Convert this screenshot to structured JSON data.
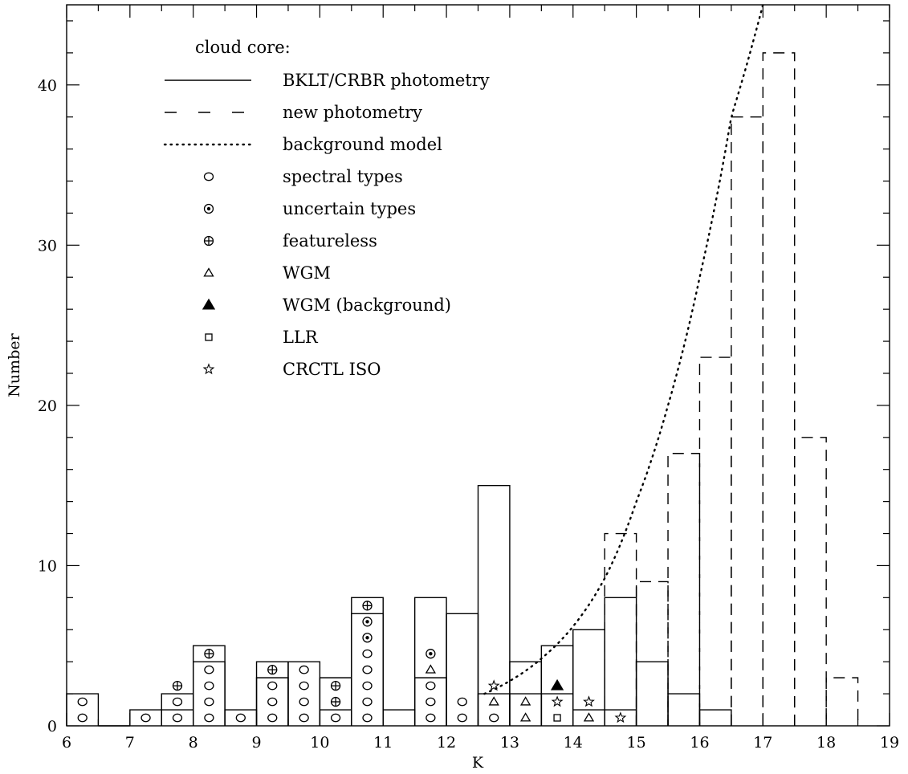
{
  "chart_data": {
    "type": "histogram",
    "title": "",
    "xlabel": "K",
    "ylabel": "Number",
    "xlim": [
      6,
      19
    ],
    "ylim": [
      0,
      45
    ],
    "x_ticks": [
      "6",
      "7",
      "8",
      "9",
      "10",
      "11",
      "12",
      "13",
      "14",
      "15",
      "16",
      "17",
      "18",
      "19"
    ],
    "y_ticks": [
      "0",
      "10",
      "20",
      "30",
      "40"
    ],
    "legend": {
      "title": "cloud core:",
      "placement": "top-left",
      "entries": [
        {
          "label": "BKLT/CRBR photometry",
          "style": "solid"
        },
        {
          "label": "new photometry",
          "style": "dashed"
        },
        {
          "label": "background model",
          "style": "dotted"
        },
        {
          "label": "spectral types",
          "marker": "circle"
        },
        {
          "label": "uncertain types",
          "marker": "dotted-circle"
        },
        {
          "label": "featureless",
          "marker": "circle-plus"
        },
        {
          "label": "WGM",
          "marker": "triangle-open"
        },
        {
          "label": "WGM (background)",
          "marker": "triangle-filled"
        },
        {
          "label": "LLR",
          "marker": "square-open"
        },
        {
          "label": "CRCTL ISO",
          "marker": "star-open"
        }
      ]
    },
    "series": [
      {
        "name": "BKLT/CRBR photometry",
        "style": "solid",
        "bins": [
          [
            6,
            6.5,
            2
          ],
          [
            6.5,
            7,
            0
          ],
          [
            7,
            7.5,
            1
          ],
          [
            7.5,
            8,
            1
          ],
          [
            8,
            8.5,
            5
          ],
          [
            8.5,
            9,
            1
          ],
          [
            9,
            9.5,
            4
          ],
          [
            9.5,
            10,
            4
          ],
          [
            10,
            10.5,
            3
          ],
          [
            10.5,
            11,
            8
          ],
          [
            11,
            11.5,
            1
          ],
          [
            11.5,
            12,
            8
          ],
          [
            12,
            12.5,
            7
          ],
          [
            12.5,
            13,
            15
          ],
          [
            13,
            13.5,
            4
          ],
          [
            13.5,
            14,
            5
          ],
          [
            14,
            14.5,
            6
          ],
          [
            14.5,
            15,
            8
          ],
          [
            15,
            15.5,
            4
          ],
          [
            15.5,
            16,
            2
          ],
          [
            16,
            16.5,
            1
          ]
        ]
      },
      {
        "name": "new photometry",
        "style": "dashed",
        "bins": [
          [
            14.5,
            15,
            12
          ],
          [
            15,
            15.5,
            9
          ],
          [
            15.5,
            16,
            17
          ],
          [
            16,
            16.5,
            23
          ],
          [
            16.5,
            17,
            38
          ],
          [
            17,
            17.5,
            42
          ],
          [
            17.5,
            18,
            18
          ],
          [
            18,
            18.5,
            3
          ]
        ]
      },
      {
        "name": "background model",
        "style": "dotted",
        "x": [
          12.6,
          13,
          13.5,
          14,
          14.5,
          15,
          15.5,
          16,
          16.5,
          17
        ],
        "y": [
          2,
          2.8,
          4.2,
          6.2,
          9.2,
          14,
          20,
          28,
          38,
          45
        ]
      },
      {
        "name": "spectral types",
        "style": "outline",
        "bins": [
          [
            7.5,
            8,
            2
          ],
          [
            8,
            8.5,
            4
          ],
          [
            9,
            9.5,
            3
          ],
          [
            10,
            10.5,
            1
          ],
          [
            10.5,
            11,
            7
          ],
          [
            11.5,
            12,
            3
          ],
          [
            12.5,
            13,
            2
          ],
          [
            13,
            13.5,
            2
          ],
          [
            13.5,
            14,
            2
          ],
          [
            14,
            14.5,
            1
          ],
          [
            14.5,
            15,
            1
          ]
        ]
      }
    ],
    "markers": [
      {
        "k": 6.25,
        "n": 1,
        "type": "circle"
      },
      {
        "k": 6.25,
        "n": 2,
        "type": "circle"
      },
      {
        "k": 7.25,
        "n": 1,
        "type": "circle"
      },
      {
        "k": 7.75,
        "n": 1,
        "type": "circle"
      },
      {
        "k": 7.75,
        "n": 2,
        "type": "circle"
      },
      {
        "k": 7.75,
        "n": 3,
        "type": "circle-plus"
      },
      {
        "k": 8.25,
        "n": 1,
        "type": "circle"
      },
      {
        "k": 8.25,
        "n": 2,
        "type": "circle"
      },
      {
        "k": 8.25,
        "n": 3,
        "type": "circle"
      },
      {
        "k": 8.25,
        "n": 4,
        "type": "circle"
      },
      {
        "k": 8.25,
        "n": 5,
        "type": "circle-plus"
      },
      {
        "k": 8.75,
        "n": 1,
        "type": "circle"
      },
      {
        "k": 9.25,
        "n": 1,
        "type": "circle"
      },
      {
        "k": 9.25,
        "n": 2,
        "type": "circle"
      },
      {
        "k": 9.25,
        "n": 3,
        "type": "circle"
      },
      {
        "k": 9.25,
        "n": 4,
        "type": "circle-plus"
      },
      {
        "k": 9.75,
        "n": 1,
        "type": "circle"
      },
      {
        "k": 9.75,
        "n": 2,
        "type": "circle"
      },
      {
        "k": 9.75,
        "n": 3,
        "type": "circle"
      },
      {
        "k": 9.75,
        "n": 4,
        "type": "circle"
      },
      {
        "k": 10.25,
        "n": 1,
        "type": "circle"
      },
      {
        "k": 10.25,
        "n": 2,
        "type": "circle-plus"
      },
      {
        "k": 10.25,
        "n": 3,
        "type": "circle-plus"
      },
      {
        "k": 10.75,
        "n": 1,
        "type": "circle"
      },
      {
        "k": 10.75,
        "n": 2,
        "type": "circle"
      },
      {
        "k": 10.75,
        "n": 3,
        "type": "circle"
      },
      {
        "k": 10.75,
        "n": 4,
        "type": "circle"
      },
      {
        "k": 10.75,
        "n": 5,
        "type": "circle"
      },
      {
        "k": 10.75,
        "n": 6,
        "type": "dotted-circle"
      },
      {
        "k": 10.75,
        "n": 7,
        "type": "dotted-circle"
      },
      {
        "k": 10.75,
        "n": 8,
        "type": "circle-plus"
      },
      {
        "k": 11.75,
        "n": 1,
        "type": "circle"
      },
      {
        "k": 11.75,
        "n": 2,
        "type": "circle"
      },
      {
        "k": 11.75,
        "n": 3,
        "type": "circle"
      },
      {
        "k": 11.75,
        "n": 4,
        "type": "triangle-open"
      },
      {
        "k": 11.75,
        "n": 5,
        "type": "dotted-circle"
      },
      {
        "k": 12.25,
        "n": 1,
        "type": "circle"
      },
      {
        "k": 12.25,
        "n": 2,
        "type": "circle"
      },
      {
        "k": 12.75,
        "n": 1,
        "type": "circle"
      },
      {
        "k": 12.75,
        "n": 2,
        "type": "triangle-open"
      },
      {
        "k": 12.75,
        "n": 3,
        "type": "star-open"
      },
      {
        "k": 13.25,
        "n": 1,
        "type": "triangle-open"
      },
      {
        "k": 13.25,
        "n": 2,
        "type": "triangle-open"
      },
      {
        "k": 13.75,
        "n": 1,
        "type": "square-open"
      },
      {
        "k": 13.75,
        "n": 2,
        "type": "star-open"
      },
      {
        "k": 13.75,
        "n": 3,
        "type": "triangle-filled"
      },
      {
        "k": 14.25,
        "n": 1,
        "type": "triangle-open"
      },
      {
        "k": 14.25,
        "n": 2,
        "type": "star-open"
      },
      {
        "k": 14.75,
        "n": 1,
        "type": "star-open"
      }
    ]
  }
}
